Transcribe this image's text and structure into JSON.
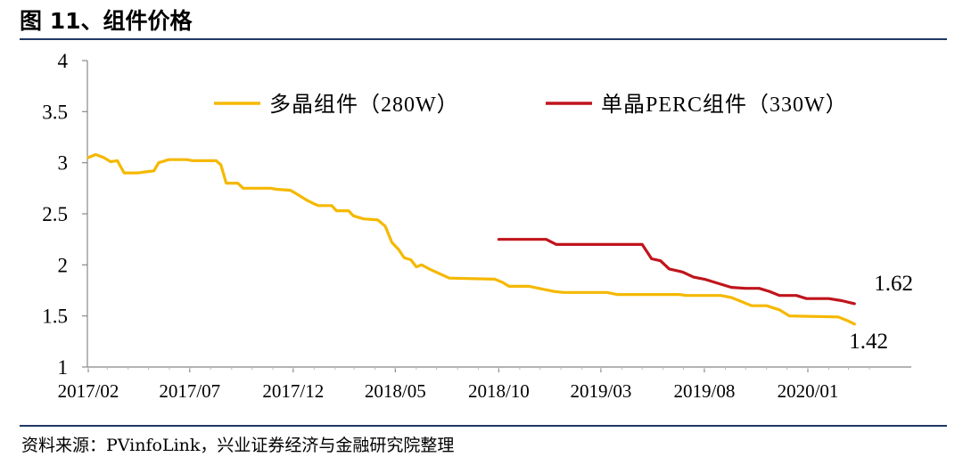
{
  "figure": {
    "title": "图  11、组件价格",
    "source": "资料来源：PVinfoLink，兴业证券经济与金融研究院整理"
  },
  "chart_data": {
    "type": "line",
    "title": "",
    "xlabel": "",
    "ylabel": "",
    "ylim": [
      1,
      4
    ],
    "yticks": [
      "1",
      "1.5",
      "2",
      "2.5",
      "3",
      "3.5",
      "4"
    ],
    "xticks": [
      "2017/02",
      "2017/07",
      "2017/12",
      "2018/05",
      "2018/10",
      "2019/03",
      "2019/08",
      "2020/01"
    ],
    "grid": false,
    "legend_position": "top",
    "series": [
      {
        "name": "多晶组件（280W）",
        "color": "#f5b800",
        "points": [
          [
            "2017-02-01",
            3.05
          ],
          [
            "2017-02-12",
            3.08
          ],
          [
            "2017-02-24",
            3.05
          ],
          [
            "2017-03-06",
            3.01
          ],
          [
            "2017-03-16",
            3.02
          ],
          [
            "2017-03-26",
            2.9
          ],
          [
            "2017-04-16",
            2.9
          ],
          [
            "2017-04-26",
            2.91
          ],
          [
            "2017-05-09",
            2.92
          ],
          [
            "2017-05-16",
            3.0
          ],
          [
            "2017-05-31",
            3.03
          ],
          [
            "2017-06-27",
            3.03
          ],
          [
            "2017-07-05",
            3.02
          ],
          [
            "2017-07-23",
            3.02
          ],
          [
            "2017-08-09",
            3.02
          ],
          [
            "2017-08-16",
            2.98
          ],
          [
            "2017-08-24",
            2.8
          ],
          [
            "2017-09-10",
            2.8
          ],
          [
            "2017-09-18",
            2.75
          ],
          [
            "2017-10-29",
            2.75
          ],
          [
            "2017-11-06",
            2.74
          ],
          [
            "2017-11-27",
            2.73
          ],
          [
            "2017-12-05",
            2.7
          ],
          [
            "2017-12-22",
            2.63
          ],
          [
            "2017-12-31",
            2.6
          ],
          [
            "2018-01-07",
            2.58
          ],
          [
            "2018-01-27",
            2.58
          ],
          [
            "2018-02-03",
            2.53
          ],
          [
            "2018-02-21",
            2.53
          ],
          [
            "2018-02-28",
            2.48
          ],
          [
            "2018-03-15",
            2.45
          ],
          [
            "2018-04-05",
            2.44
          ],
          [
            "2018-04-16",
            2.38
          ],
          [
            "2018-04-26",
            2.22
          ],
          [
            "2018-05-06",
            2.15
          ],
          [
            "2018-05-14",
            2.07
          ],
          [
            "2018-05-24",
            2.05
          ],
          [
            "2018-06-01",
            1.98
          ],
          [
            "2018-06-09",
            2.0
          ],
          [
            "2018-06-20",
            1.96
          ],
          [
            "2018-07-10",
            1.9
          ],
          [
            "2018-07-20",
            1.87
          ],
          [
            "2018-09-25",
            1.86
          ],
          [
            "2018-10-06",
            1.83
          ],
          [
            "2018-10-16",
            1.79
          ],
          [
            "2018-11-15",
            1.79
          ],
          [
            "2018-12-21",
            1.74
          ],
          [
            "2019-01-05",
            1.73
          ],
          [
            "2019-03-10",
            1.73
          ],
          [
            "2019-03-25",
            1.71
          ],
          [
            "2019-06-25",
            1.71
          ],
          [
            "2019-07-05",
            1.7
          ],
          [
            "2019-08-25",
            1.7
          ],
          [
            "2019-09-10",
            1.68
          ],
          [
            "2019-09-25",
            1.64
          ],
          [
            "2019-10-10",
            1.6
          ],
          [
            "2019-11-01",
            1.6
          ],
          [
            "2019-11-20",
            1.56
          ],
          [
            "2019-12-05",
            1.5
          ],
          [
            "2020-02-15",
            1.49
          ],
          [
            "2020-03-01",
            1.45
          ],
          [
            "2020-03-10",
            1.42
          ]
        ]
      },
      {
        "name": "单晶PERC组件（330W）",
        "color": "#c0141c",
        "points": [
          [
            "2018-10-01",
            2.25
          ],
          [
            "2018-12-10",
            2.25
          ],
          [
            "2018-12-25",
            2.2
          ],
          [
            "2019-04-15",
            2.2
          ],
          [
            "2019-05-01",
            2.2
          ],
          [
            "2019-05-15",
            2.06
          ],
          [
            "2019-05-28",
            2.04
          ],
          [
            "2019-06-10",
            1.96
          ],
          [
            "2019-06-30",
            1.93
          ],
          [
            "2019-07-16",
            1.88
          ],
          [
            "2019-08-01",
            1.86
          ],
          [
            "2019-08-21",
            1.82
          ],
          [
            "2019-09-10",
            1.78
          ],
          [
            "2019-10-01",
            1.77
          ],
          [
            "2019-10-21",
            1.77
          ],
          [
            "2019-11-05",
            1.74
          ],
          [
            "2019-11-20",
            1.7
          ],
          [
            "2019-12-15",
            1.7
          ],
          [
            "2019-12-30",
            1.67
          ],
          [
            "2020-02-01",
            1.67
          ],
          [
            "2020-02-20",
            1.65
          ],
          [
            "2020-03-10",
            1.62
          ]
        ]
      }
    ],
    "annotations": [
      "1.62",
      "1.42"
    ]
  }
}
